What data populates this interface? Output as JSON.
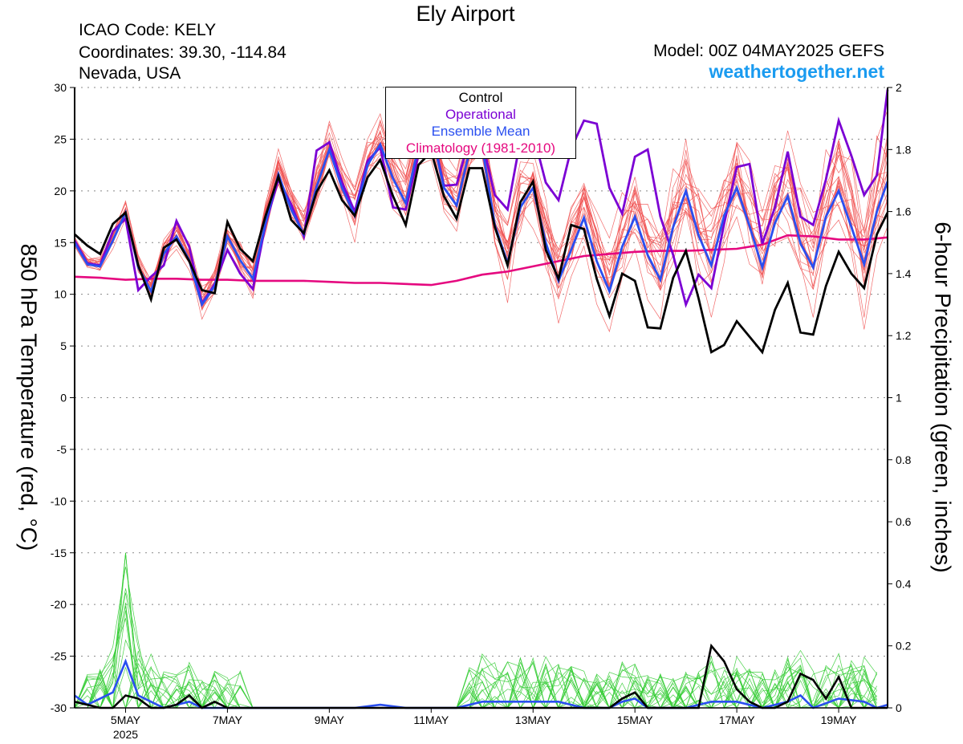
{
  "header": {
    "title": "Ely Airport",
    "station_code": "ICAO Code: KELY",
    "coordinates": "Coordinates: 39.30, -114.84",
    "location": "Nevada, USA",
    "model": "Model: 00Z 04MAY2025 GEFS",
    "site": "weathertogether.net"
  },
  "colors": {
    "ensemble_members_temp": "#f05050",
    "ensemble_members_precip": "#33cc33",
    "control": "#000000",
    "operational": "#7b00d4",
    "ensemble_mean": "#2a4ff0",
    "climatology": "#e5087f",
    "site": "#1a9bf0"
  },
  "chart_data": {
    "type": "line",
    "x_unit": "forecast day (day-of-month, May 2025, 00Z)",
    "xlim": [
      4.0,
      19.96
    ],
    "xticks": [
      {
        "x": 5,
        "label": "5MAY",
        "sub": "2025"
      },
      {
        "x": 7,
        "label": "7MAY"
      },
      {
        "x": 9,
        "label": "9MAY"
      },
      {
        "x": 11,
        "label": "11MAY"
      },
      {
        "x": 13,
        "label": "13MAY"
      },
      {
        "x": 15,
        "label": "15MAY"
      },
      {
        "x": 17,
        "label": "17MAY"
      },
      {
        "x": 19,
        "label": "19MAY"
      }
    ],
    "left_axis": {
      "label": "850 hPa Temperature (red, °C)",
      "ylim": [
        -30,
        30
      ],
      "ticks": [
        30,
        25,
        20,
        15,
        10,
        5,
        0,
        -5,
        -10,
        -15,
        -20,
        -25,
        -30
      ]
    },
    "right_axis": {
      "label": "6-hour Precipitation (green, inches)",
      "ylim": [
        0,
        2
      ],
      "ticks": [
        2,
        1.8,
        1.6,
        1.4,
        1.2,
        1,
        0.8,
        0.6,
        0.4,
        0.2,
        0
      ]
    },
    "grid": "horizontal dotted",
    "legend": {
      "position": "top-center",
      "entries": [
        "Control",
        "Operational",
        "Ensemble Mean",
        "Climatology (1981-2010)"
      ]
    },
    "temperature_series": {
      "control": [
        [
          4.0,
          15.8
        ],
        [
          4.25,
          14.7
        ],
        [
          4.5,
          13.9
        ],
        [
          4.75,
          16.8
        ],
        [
          5.0,
          17.9
        ],
        [
          5.25,
          12.8
        ],
        [
          5.5,
          9.5
        ],
        [
          5.75,
          14.5
        ],
        [
          6.0,
          15.3
        ],
        [
          6.25,
          13.2
        ],
        [
          6.5,
          10.4
        ],
        [
          6.75,
          10.1
        ],
        [
          7.0,
          17.0
        ],
        [
          7.25,
          14.4
        ],
        [
          7.5,
          13.2
        ],
        [
          7.75,
          17.6
        ],
        [
          8.0,
          21.4
        ],
        [
          8.25,
          17.2
        ],
        [
          8.5,
          15.9
        ],
        [
          8.75,
          19.9
        ],
        [
          9.0,
          22.0
        ],
        [
          9.25,
          19.1
        ],
        [
          9.5,
          17.6
        ],
        [
          9.75,
          21.3
        ],
        [
          10.0,
          23.0
        ],
        [
          10.25,
          19.5
        ],
        [
          10.5,
          16.7
        ],
        [
          10.75,
          22.5
        ],
        [
          11.0,
          23.8
        ],
        [
          11.25,
          19.5
        ],
        [
          11.5,
          17.3
        ],
        [
          11.75,
          22.2
        ],
        [
          12.0,
          22.2
        ],
        [
          12.25,
          16.5
        ],
        [
          12.5,
          12.8
        ],
        [
          12.75,
          18.9
        ],
        [
          13.0,
          20.9
        ],
        [
          13.25,
          14.3
        ],
        [
          13.5,
          11.5
        ],
        [
          13.75,
          16.7
        ],
        [
          14.0,
          16.3
        ],
        [
          14.25,
          11.5
        ],
        [
          14.5,
          7.9
        ],
        [
          14.75,
          12.0
        ],
        [
          15.0,
          11.3
        ],
        [
          15.25,
          6.8
        ],
        [
          15.5,
          6.7
        ],
        [
          15.75,
          11.6
        ],
        [
          16.0,
          14.2
        ],
        [
          16.25,
          9.6
        ],
        [
          16.5,
          4.4
        ],
        [
          16.75,
          5.1
        ],
        [
          17.0,
          7.4
        ],
        [
          17.25,
          5.9
        ],
        [
          17.5,
          4.4
        ],
        [
          17.75,
          8.5
        ],
        [
          18.0,
          11.1
        ],
        [
          18.25,
          6.3
        ],
        [
          18.5,
          6.1
        ],
        [
          18.75,
          10.8
        ],
        [
          19.0,
          14.1
        ],
        [
          19.25,
          12.0
        ],
        [
          19.5,
          10.6
        ],
        [
          19.75,
          15.8
        ],
        [
          19.96,
          17.9
        ]
      ],
      "operational": [
        [
          4.0,
          15.2
        ],
        [
          4.25,
          13.0
        ],
        [
          4.5,
          12.8
        ],
        [
          4.75,
          16.1
        ],
        [
          5.0,
          17.3
        ],
        [
          5.25,
          10.4
        ],
        [
          5.5,
          11.7
        ],
        [
          5.75,
          12.8
        ],
        [
          6.0,
          17.1
        ],
        [
          6.25,
          14.6
        ],
        [
          6.5,
          9.1
        ],
        [
          6.75,
          11.0
        ],
        [
          7.0,
          14.3
        ],
        [
          7.25,
          12.0
        ],
        [
          7.5,
          10.5
        ],
        [
          7.75,
          16.8
        ],
        [
          8.0,
          21.1
        ],
        [
          8.25,
          18.7
        ],
        [
          8.5,
          15.6
        ],
        [
          8.75,
          23.9
        ],
        [
          9.0,
          24.7
        ],
        [
          9.25,
          20.8
        ],
        [
          9.5,
          18.0
        ],
        [
          9.75,
          22.9
        ],
        [
          10.0,
          24.2
        ],
        [
          10.25,
          18.4
        ],
        [
          10.5,
          18.2
        ],
        [
          10.75,
          23.5
        ],
        [
          11.0,
          26.1
        ],
        [
          11.25,
          20.5
        ],
        [
          11.5,
          20.6
        ],
        [
          11.75,
          25.1
        ],
        [
          12.0,
          24.8
        ],
        [
          12.25,
          19.6
        ],
        [
          12.5,
          18.2
        ],
        [
          12.75,
          24.9
        ],
        [
          13.0,
          25.6
        ],
        [
          13.25,
          20.8
        ],
        [
          13.5,
          19.1
        ],
        [
          13.75,
          24.1
        ],
        [
          14.0,
          26.8
        ],
        [
          14.25,
          26.5
        ],
        [
          14.5,
          20.3
        ],
        [
          14.75,
          17.8
        ],
        [
          15.0,
          23.3
        ],
        [
          15.25,
          24.0
        ],
        [
          15.5,
          17.5
        ],
        [
          15.75,
          13.8
        ],
        [
          16.0,
          9.0
        ],
        [
          16.25,
          11.9
        ],
        [
          16.5,
          10.6
        ],
        [
          16.75,
          16.8
        ],
        [
          17.0,
          22.3
        ],
        [
          17.25,
          22.6
        ],
        [
          17.5,
          14.9
        ],
        [
          17.75,
          18.4
        ],
        [
          18.0,
          23.8
        ],
        [
          18.25,
          17.5
        ],
        [
          18.5,
          16.7
        ],
        [
          18.75,
          21.1
        ],
        [
          19.0,
          26.8
        ],
        [
          19.25,
          23.4
        ],
        [
          19.5,
          19.6
        ],
        [
          19.75,
          21.5
        ],
        [
          19.96,
          29.8
        ]
      ],
      "ensemble_mean": [
        [
          4.0,
          15.0
        ],
        [
          4.25,
          12.9
        ],
        [
          4.5,
          12.7
        ],
        [
          4.75,
          15.2
        ],
        [
          5.0,
          17.9
        ],
        [
          5.25,
          12.6
        ],
        [
          5.5,
          10.3
        ],
        [
          5.75,
          13.9
        ],
        [
          6.0,
          15.6
        ],
        [
          6.25,
          13.3
        ],
        [
          6.5,
          9.0
        ],
        [
          6.75,
          10.8
        ],
        [
          7.0,
          15.6
        ],
        [
          7.25,
          13.3
        ],
        [
          7.5,
          11.5
        ],
        [
          7.75,
          16.9
        ],
        [
          8.0,
          21.6
        ],
        [
          8.25,
          18.2
        ],
        [
          8.5,
          15.8
        ],
        [
          8.75,
          20.4
        ],
        [
          9.0,
          24.0
        ],
        [
          9.25,
          20.3
        ],
        [
          9.5,
          17.6
        ],
        [
          9.75,
          22.5
        ],
        [
          10.0,
          24.5
        ],
        [
          10.25,
          21.2
        ],
        [
          10.5,
          18.8
        ],
        [
          10.75,
          24.3
        ],
        [
          11.0,
          25.9
        ],
        [
          11.25,
          20.3
        ],
        [
          11.5,
          18.6
        ],
        [
          11.75,
          23.8
        ],
        [
          12.0,
          24.3
        ],
        [
          12.25,
          16.7
        ],
        [
          12.5,
          13.0
        ],
        [
          12.75,
          18.4
        ],
        [
          13.0,
          20.3
        ],
        [
          13.25,
          15.0
        ],
        [
          13.5,
          11.3
        ],
        [
          13.75,
          14.3
        ],
        [
          14.0,
          17.4
        ],
        [
          14.25,
          13.2
        ],
        [
          14.5,
          10.3
        ],
        [
          14.75,
          14.6
        ],
        [
          15.0,
          17.5
        ],
        [
          15.25,
          13.8
        ],
        [
          15.5,
          11.4
        ],
        [
          15.75,
          16.5
        ],
        [
          16.0,
          20.0
        ],
        [
          16.25,
          15.7
        ],
        [
          16.5,
          12.8
        ],
        [
          16.75,
          17.6
        ],
        [
          17.0,
          20.3
        ],
        [
          17.25,
          16.6
        ],
        [
          17.5,
          12.6
        ],
        [
          17.75,
          16.9
        ],
        [
          18.0,
          19.5
        ],
        [
          18.25,
          14.9
        ],
        [
          18.5,
          12.6
        ],
        [
          18.75,
          17.5
        ],
        [
          19.0,
          20.0
        ],
        [
          19.25,
          16.5
        ],
        [
          19.5,
          12.9
        ],
        [
          19.75,
          18.0
        ],
        [
          19.96,
          20.9
        ]
      ],
      "climatology": [
        [
          4.0,
          11.7
        ],
        [
          4.5,
          11.6
        ],
        [
          5.0,
          11.4
        ],
        [
          5.5,
          11.5
        ],
        [
          6.0,
          11.5
        ],
        [
          6.5,
          11.4
        ],
        [
          7.0,
          11.4
        ],
        [
          7.5,
          11.3
        ],
        [
          8.0,
          11.3
        ],
        [
          8.5,
          11.3
        ],
        [
          9.0,
          11.2
        ],
        [
          9.5,
          11.1
        ],
        [
          10.0,
          11.1
        ],
        [
          10.5,
          11.0
        ],
        [
          11.0,
          10.9
        ],
        [
          11.5,
          11.3
        ],
        [
          12.0,
          11.9
        ],
        [
          12.5,
          12.2
        ],
        [
          13.0,
          12.7
        ],
        [
          13.5,
          13.2
        ],
        [
          14.0,
          13.7
        ],
        [
          14.5,
          13.9
        ],
        [
          15.0,
          14.1
        ],
        [
          15.5,
          14.2
        ],
        [
          16.0,
          14.2
        ],
        [
          16.5,
          14.3
        ],
        [
          17.0,
          14.4
        ],
        [
          17.5,
          14.8
        ],
        [
          18.0,
          15.7
        ],
        [
          18.5,
          15.6
        ],
        [
          19.0,
          15.3
        ],
        [
          19.5,
          15.3
        ],
        [
          19.96,
          15.5
        ]
      ]
    },
    "precipitation_series": {
      "control": [
        [
          4.0,
          0.02
        ],
        [
          4.5,
          0.0
        ],
        [
          4.75,
          0.0
        ],
        [
          5.0,
          0.04
        ],
        [
          5.25,
          0.03
        ],
        [
          5.5,
          0.0
        ],
        [
          5.75,
          0.0
        ],
        [
          6.0,
          0.01
        ],
        [
          6.25,
          0.04
        ],
        [
          6.5,
          0.0
        ],
        [
          6.75,
          0.02
        ],
        [
          7.0,
          0.0
        ],
        [
          7.25,
          0.0
        ],
        [
          14.5,
          0.0
        ],
        [
          14.75,
          0.03
        ],
        [
          15.0,
          0.05
        ],
        [
          15.25,
          0.0
        ],
        [
          15.75,
          0.0
        ],
        [
          16.0,
          0.0
        ],
        [
          16.25,
          0.0
        ],
        [
          16.5,
          0.2
        ],
        [
          16.75,
          0.15
        ],
        [
          17.0,
          0.06
        ],
        [
          17.25,
          0.02
        ],
        [
          17.5,
          0.0
        ],
        [
          17.75,
          0.0
        ],
        [
          18.0,
          0.02
        ],
        [
          18.25,
          0.11
        ],
        [
          18.5,
          0.09
        ],
        [
          18.75,
          0.03
        ],
        [
          19.0,
          0.1
        ],
        [
          19.25,
          0.0
        ],
        [
          19.96,
          0.0
        ]
      ],
      "ensemble_mean": [
        [
          4.0,
          0.04
        ],
        [
          4.25,
          0.01
        ],
        [
          4.5,
          0.03
        ],
        [
          4.75,
          0.05
        ],
        [
          5.0,
          0.15
        ],
        [
          5.25,
          0.04
        ],
        [
          5.5,
          0.02
        ],
        [
          5.75,
          0.0
        ],
        [
          6.0,
          0.01
        ],
        [
          6.25,
          0.02
        ],
        [
          6.5,
          0.0
        ],
        [
          7.0,
          0.0
        ],
        [
          9.0,
          0.0
        ],
        [
          9.5,
          0.0
        ],
        [
          10.0,
          0.01
        ],
        [
          10.5,
          0.0
        ],
        [
          11.5,
          0.0
        ],
        [
          12.0,
          0.02
        ],
        [
          12.5,
          0.02
        ],
        [
          13.0,
          0.02
        ],
        [
          13.5,
          0.02
        ],
        [
          14.0,
          0.0
        ],
        [
          14.5,
          0.0
        ],
        [
          14.75,
          0.02
        ],
        [
          15.0,
          0.03
        ],
        [
          15.25,
          0.0
        ],
        [
          15.5,
          0.0
        ],
        [
          16.0,
          0.0
        ],
        [
          16.5,
          0.02
        ],
        [
          17.0,
          0.02
        ],
        [
          17.5,
          0.0
        ],
        [
          18.0,
          0.02
        ],
        [
          18.25,
          0.04
        ],
        [
          18.5,
          0.0
        ],
        [
          19.0,
          0.03
        ],
        [
          19.5,
          0.02
        ],
        [
          19.75,
          0.0
        ],
        [
          19.96,
          0.01
        ]
      ]
    }
  }
}
